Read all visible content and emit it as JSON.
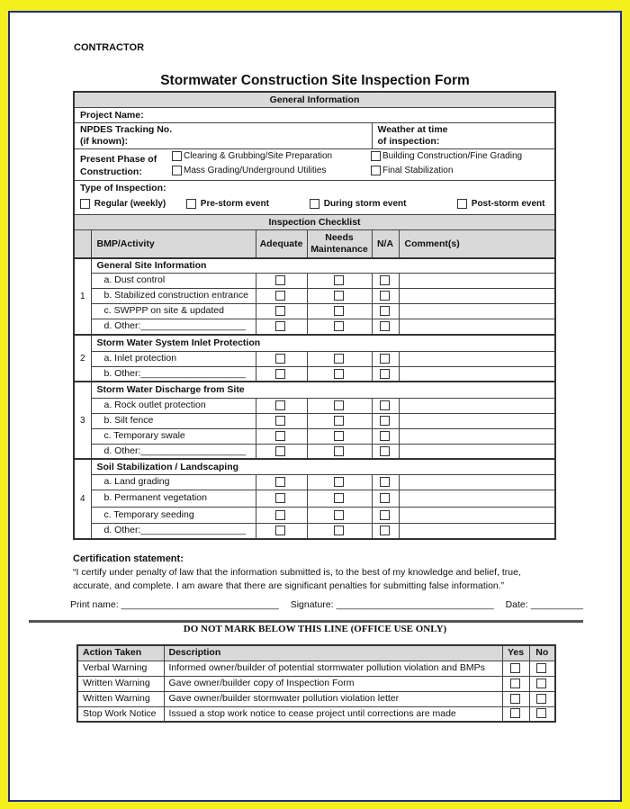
{
  "header": {
    "contractor": "CONTRACTOR",
    "title": "Stormwater Construction Site Inspection Form"
  },
  "general": {
    "heading": "General Information",
    "project_name": "Project Name:",
    "npdes_line1": "NPDES Tracking No.",
    "npdes_line2": "(if known):",
    "weather_line1": "Weather at time",
    "weather_line2": "of inspection:",
    "phase_line1": "Present Phase of",
    "phase_line2": "Construction:",
    "phase_options": [
      "Clearing & Grubbing/Site Preparation",
      "Building Construction/Fine Grading",
      "Mass Grading/Underground Utilities",
      "Final Stabilization"
    ],
    "type_label": "Type of Inspection:",
    "type_options": [
      "Regular (weekly)",
      "Pre-storm event",
      "During storm event",
      "Post-storm event"
    ]
  },
  "checklist": {
    "heading": "Inspection Checklist",
    "columns": [
      "BMP/Activity",
      "Adequate",
      "Needs Maintenance",
      "N/A",
      "Comment(s)"
    ],
    "sections": [
      {
        "number": "1",
        "title": "General Site Information",
        "items": [
          "a.  Dust control",
          "b.  Stabilized construction entrance",
          "c.  SWPPP on site & updated",
          "d.  Other:____________________"
        ]
      },
      {
        "number": "2",
        "title": "Storm Water System Inlet Protection",
        "items": [
          "a.  Inlet protection",
          "b.  Other:____________________"
        ]
      },
      {
        "number": "3",
        "title": "Storm Water Discharge from Site",
        "items": [
          "a.  Rock outlet protection",
          "b.  Silt fence",
          "c.  Temporary swale",
          "d.  Other:____________________"
        ]
      },
      {
        "number": "4",
        "title": "Soil Stabilization / Landscaping",
        "items": [
          "a.  Land grading",
          "b.  Permanent vegetation",
          "c.  Temporary seeding",
          "d.  Other:____________________"
        ]
      }
    ]
  },
  "certification": {
    "label": "Certification statement:",
    "text": "“I certify under penalty of law that the information submitted is, to the best of my knowledge and belief, true, accurate, and complete. I am aware that there are significant penalties for submitting false information.”",
    "print_name": "Print  name:  ______________________________",
    "signature": "Signature:  ______________________________",
    "date": "Date:  __________"
  },
  "office": {
    "heading": "DO NOT MARK BELOW THIS LINE (OFFICE USE ONLY)",
    "columns": [
      "Action Taken",
      "Description",
      "Yes",
      "No"
    ],
    "rows": [
      {
        "action": "Verbal Warning",
        "description": "Informed owner/builder of potential stormwater pollution violation and BMPs"
      },
      {
        "action": "Written Warning",
        "description": "Gave owner/builder copy of Inspection Form"
      },
      {
        "action": "Written Warning",
        "description": "Gave owner/builder stormwater pollution violation letter"
      },
      {
        "action": "Stop Work Notice",
        "description": "Issued a stop work notice to cease project until corrections are made"
      }
    ]
  }
}
